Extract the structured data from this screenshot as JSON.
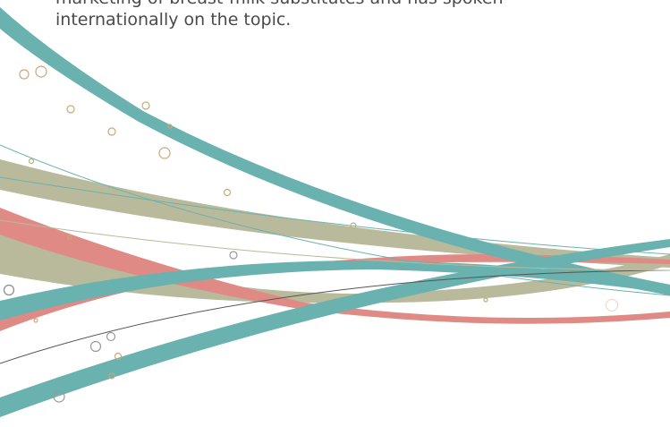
{
  "body": {
    "lines": [
      "marketing of breast-milk substitutes and has spoken",
      "internationally on the topic."
    ]
  }
}
